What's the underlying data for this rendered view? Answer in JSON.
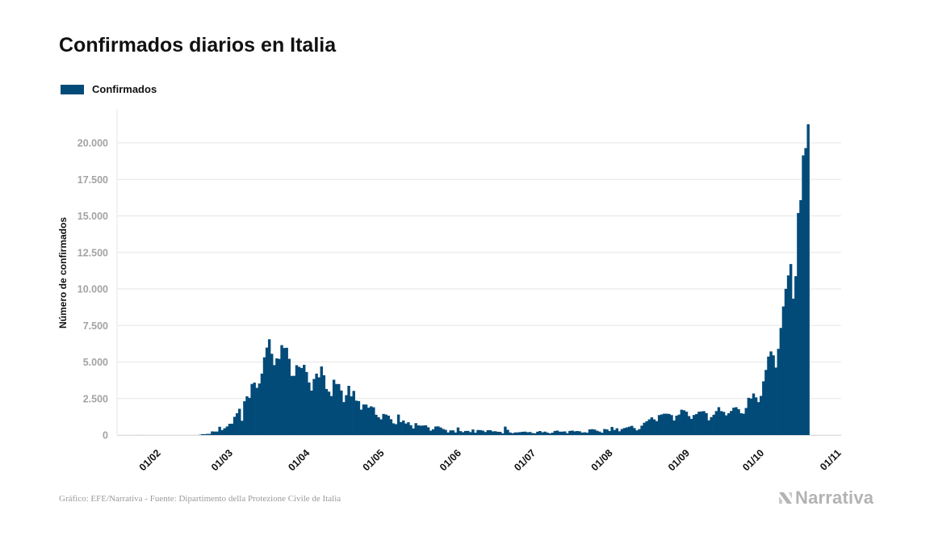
{
  "title": "Confirmados diarios en Italia",
  "legend": {
    "label": "Confirmados",
    "color": "#024b79"
  },
  "footer": {
    "source": "Gráfico: EFE/Narrativa - Fuente: Dipartimento della Protezione Civile de Italia",
    "brand": "Narrativa"
  },
  "chart_data": {
    "type": "bar",
    "title": "Confirmados diarios en Italia",
    "xlabel": "",
    "ylabel": "Número de confirmados",
    "ylim": [
      0,
      22000
    ],
    "yticks": [
      0,
      2500,
      5000,
      7500,
      10000,
      12500,
      15000,
      17500,
      20000
    ],
    "ytick_labels": [
      "0",
      "2.500",
      "5.000",
      "7.500",
      "10.000",
      "12.500",
      "15.000",
      "17.500",
      "20.000"
    ],
    "grid": true,
    "xticks": [
      {
        "label": "01/02",
        "day": 9
      },
      {
        "label": "01/03",
        "day": 38
      },
      {
        "label": "01/04",
        "day": 69
      },
      {
        "label": "01/05",
        "day": 99
      },
      {
        "label": "01/06",
        "day": 130
      },
      {
        "label": "01/07",
        "day": 160
      },
      {
        "label": "01/08",
        "day": 191
      },
      {
        "label": "01/09",
        "day": 222
      },
      {
        "label": "01/10",
        "day": 252
      },
      {
        "label": "01/11",
        "day": 283
      }
    ],
    "series": [
      {
        "name": "Confirmados",
        "color": "#024b79",
        "start": "2020-01-23",
        "values": [
          0,
          0,
          0,
          0,
          0,
          0,
          0,
          0,
          2,
          0,
          0,
          0,
          0,
          0,
          0,
          0,
          0,
          0,
          0,
          0,
          0,
          0,
          0,
          0,
          0,
          0,
          0,
          0,
          0,
          0,
          0,
          17,
          62,
          60,
          76,
          78,
          250,
          238,
          240,
          566,
          342,
          466,
          587,
          769,
          778,
          1247,
          1492,
          1797,
          977,
          2313,
          2651,
          2547,
          3497,
          3590,
          3233,
          3526,
          4207,
          5322,
          5986,
          6557,
          5560,
          4789,
          5249,
          5210,
          6153,
          5959,
          5974,
          5217,
          4050,
          4053,
          4782,
          4668,
          4585,
          4805,
          4316,
          3599,
          3039,
          3836,
          4204,
          3951,
          4694,
          4092,
          3153,
          2972,
          2667,
          3786,
          3493,
          3491,
          3047,
          2256,
          2729,
          3370,
          2646,
          3021,
          2357,
          2324,
          1739,
          2091,
          2086,
          1872,
          1965,
          1900,
          1389,
          1221,
          1075,
          1444,
          1401,
          1327,
          1083,
          802,
          744,
          1402,
          888,
          992,
          789,
          875,
          675,
          451,
          813,
          665,
          642,
          652,
          669,
          531,
          300,
          397,
          584,
          593,
          516,
          416,
          355,
          178,
          318,
          321,
          177,
          518,
          270,
          197,
          280,
          283,
          202,
          379,
          163,
          346,
          338,
          303,
          210,
          329,
          333,
          251,
          262,
          224,
          221,
          113,
          577,
          358,
          174,
          126,
          179,
          182,
          201,
          223,
          235,
          192,
          208,
          138,
          114,
          229,
          276,
          188,
          234,
          169,
          114,
          163,
          280,
          306,
          230,
          233,
          249,
          128,
          282,
          306,
          252,
          275,
          255,
          170,
          190,
          159,
          384,
          402,
          379,
          295,
          238,
          159,
          412,
          384,
          274,
          552,
          347,
          463,
          259,
          412,
          481,
          523,
          574,
          629,
          479,
          320,
          403,
          642,
          845,
          947,
          1071,
          1210,
          1071,
          953,
          1367,
          1411,
          1460,
          1462,
          1444,
          1365,
          996,
          1326,
          1397,
          1733,
          1695,
          1597,
          1297,
          1108,
          1370,
          1434,
          1597,
          1616,
          1638,
          1501,
          1008,
          1229,
          1392,
          1640,
          1907,
          1638,
          1587,
          1350,
          1494,
          1648,
          1869,
          1907,
          1766,
          1494,
          1459,
          1851,
          2548,
          2499,
          2843,
          2578,
          2257,
          2677,
          3678,
          4458,
          5372,
          5724,
          5456,
          4619,
          5901,
          7332,
          8804,
          10010,
          10925,
          11705,
          9338,
          10874,
          15199,
          16079,
          19143,
          19644,
          21273
        ]
      }
    ]
  }
}
